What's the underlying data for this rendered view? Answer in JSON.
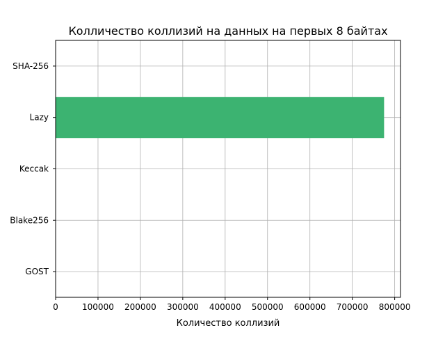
{
  "chart_data": {
    "type": "bar",
    "orientation": "horizontal",
    "title": "Колличество коллизий на данных на первых 8 байтах",
    "xlabel": "Количество коллизий",
    "ylabel": "",
    "categories": [
      "GOST",
      "Blake256",
      "Keccak",
      "Lazy",
      "SHA-256"
    ],
    "values": [
      0,
      0,
      0,
      775000,
      0
    ],
    "xlim": [
      0,
      813750
    ],
    "xticks": [
      0,
      100000,
      200000,
      300000,
      400000,
      500000,
      600000,
      700000,
      800000
    ],
    "grid": true,
    "bar_color": "#3cb371"
  }
}
